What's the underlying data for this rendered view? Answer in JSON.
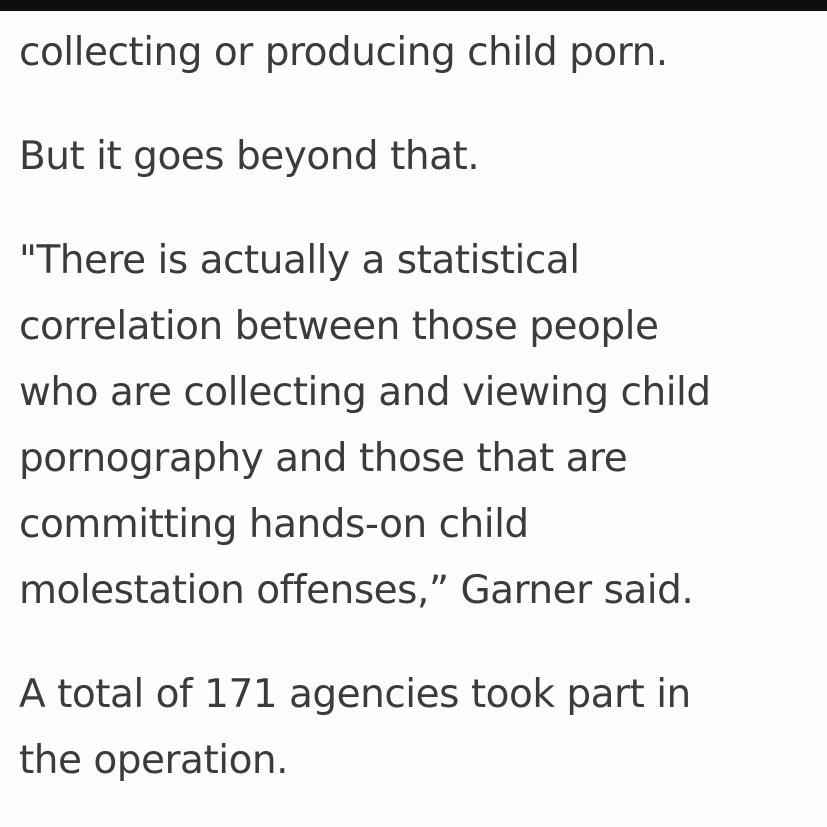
{
  "article": {
    "lines": [
      "collecting or producing child porn.",
      "But it goes beyond that.",
      "\"There is actually a statistical",
      "correlation between those people",
      "who are collecting and viewing child",
      "pornography and those that are",
      "committing hands-on child",
      "molestation offenses,” Garner said.",
      "A total of 171 agencies took part in",
      "the operation."
    ]
  },
  "colors": {
    "text": "#3b3b3b",
    "background": "#fdfdfd",
    "top_bar": "#0e0e0e"
  }
}
